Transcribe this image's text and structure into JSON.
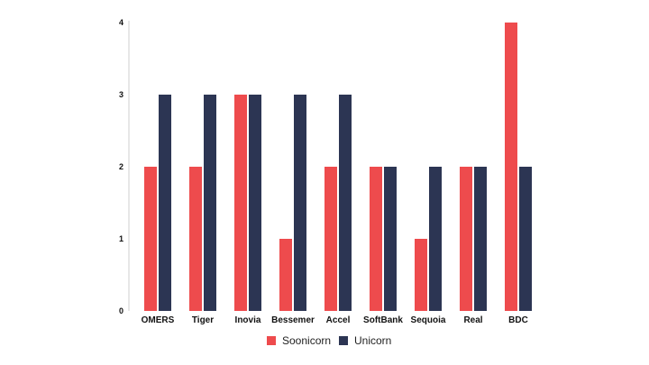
{
  "chart_data": {
    "type": "bar",
    "categories": [
      "OMERS",
      "Tiger",
      "Inovia",
      "Bessemer",
      "Accel",
      "SoftBank",
      "Sequoia",
      "Real",
      "BDC"
    ],
    "series": [
      {
        "name": "Soonicorn",
        "color": "#ee4b4d",
        "values": [
          2,
          2,
          3,
          1,
          2,
          2,
          1,
          2,
          4
        ]
      },
      {
        "name": "Unicorn",
        "color": "#2c3553",
        "values": [
          3,
          3,
          3,
          3,
          3,
          2,
          2,
          2,
          2
        ]
      }
    ],
    "yticks": [
      0,
      1,
      2,
      3,
      4
    ],
    "ylim": [
      0,
      4
    ],
    "grid": false,
    "legend_position": "bottom-center",
    "title": "",
    "xlabel": "",
    "ylabel": ""
  }
}
